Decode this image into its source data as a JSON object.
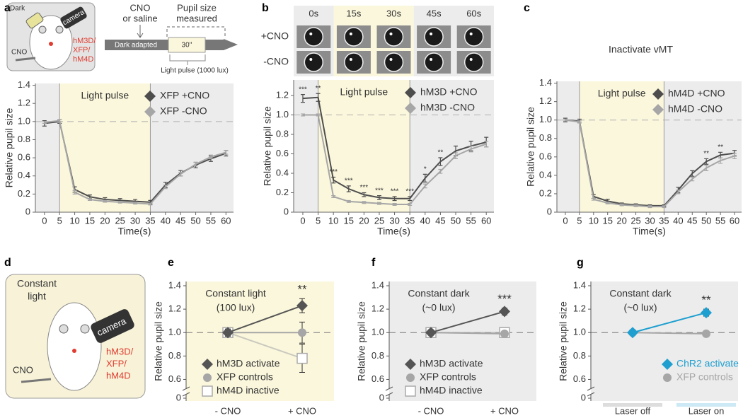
{
  "chart_data": [
    {
      "type": "line",
      "label": "a",
      "x": [
        0,
        5,
        10,
        15,
        20,
        25,
        30,
        35,
        40,
        45,
        50,
        55,
        60
      ],
      "xlim": [
        -3,
        62.5
      ],
      "xticks": [
        0,
        5,
        10,
        15,
        20,
        25,
        30,
        35,
        40,
        45,
        50,
        55,
        60
      ],
      "ylim": [
        0,
        1.42
      ],
      "yticks": [
        0,
        0.2,
        0.4,
        0.6,
        0.8,
        {
          "value": 1,
          "label": "1.0"
        },
        1.2,
        1.4
      ],
      "xlabel": "Time(s)",
      "ylabel": "Relative pupil size",
      "shaded_region": {
        "label": "Light pulse",
        "x": [
          5,
          35
        ],
        "color": "#fbf7dc"
      },
      "reference_line": 1,
      "legend": "upper right",
      "series": [
        {
          "name": "XFP +CNO",
          "color": "#4d4d4d",
          "values": [
            0.98,
            1.0,
            0.25,
            0.17,
            0.14,
            0.13,
            0.12,
            0.11,
            0.3,
            0.43,
            0.52,
            0.59,
            0.65
          ],
          "errors": [
            0.03,
            0.02,
            0.03,
            0.02,
            0.02,
            0.02,
            0.02,
            0.02,
            0.03,
            0.03,
            0.03,
            0.03,
            0.03
          ]
        },
        {
          "name": "XFP -CNO",
          "color": "#a6a6a6",
          "values": [
            0.99,
            1.01,
            0.22,
            0.14,
            0.12,
            0.11,
            0.1,
            0.09,
            0.28,
            0.42,
            0.53,
            0.61,
            0.66
          ],
          "errors": [
            0.01,
            0.01,
            0.02,
            0.01,
            0.01,
            0.01,
            0.01,
            0.01,
            0.02,
            0.02,
            0.02,
            0.02,
            0.02
          ]
        }
      ]
    },
    {
      "type": "line",
      "label": "b",
      "x": [
        0,
        5,
        10,
        15,
        20,
        25,
        30,
        35,
        40,
        45,
        50,
        55,
        60
      ],
      "xlim": [
        -3,
        62.5
      ],
      "xticks": [
        0,
        5,
        10,
        15,
        20,
        25,
        30,
        35,
        40,
        45,
        50,
        55,
        60
      ],
      "ylim": [
        0,
        1.36
      ],
      "yticks": [
        0,
        0.2,
        0.4,
        0.6,
        0.8,
        {
          "value": 1,
          "label": "1.0"
        },
        1.2
      ],
      "xlabel": "Time(s)",
      "ylabel": "Relative pupil size",
      "shaded_region": {
        "label": "Light pulse",
        "x": [
          5,
          35
        ],
        "color": "#fbf7dc"
      },
      "reference_line": 1,
      "legend": "upper right",
      "significance": [
        "***",
        "**",
        "***",
        "***",
        "***",
        "***",
        "***",
        "***",
        "*",
        "**",
        null,
        null,
        null
      ],
      "series": [
        {
          "name": "hM3D +CNO",
          "color": "#4d4d4d",
          "values": [
            1.17,
            1.18,
            0.33,
            0.24,
            0.18,
            0.15,
            0.14,
            0.14,
            0.35,
            0.52,
            0.63,
            0.68,
            0.72
          ],
          "errors": [
            0.04,
            0.04,
            0.03,
            0.03,
            0.02,
            0.02,
            0.02,
            0.02,
            0.04,
            0.04,
            0.05,
            0.05,
            0.05
          ]
        },
        {
          "name": "hM3D -CNO",
          "color": "#a6a6a6",
          "values": [
            1.0,
            1.0,
            0.16,
            0.11,
            0.1,
            0.09,
            0.08,
            0.08,
            0.27,
            0.42,
            0.58,
            0.65,
            0.7
          ],
          "errors": [
            0.01,
            0.01,
            0.01,
            0.01,
            0.01,
            0.01,
            0.01,
            0.01,
            0.02,
            0.02,
            0.03,
            0.03,
            0.03
          ]
        }
      ]
    },
    {
      "type": "line",
      "label": "c",
      "title": "Inactivate vMT",
      "x": [
        0,
        5,
        10,
        15,
        20,
        25,
        30,
        35,
        40,
        45,
        50,
        55,
        60
      ],
      "xlim": [
        -3,
        62.5
      ],
      "xticks": [
        0,
        5,
        10,
        15,
        20,
        25,
        30,
        35,
        40,
        45,
        50,
        55,
        60
      ],
      "ylim": [
        0,
        1.42
      ],
      "yticks": [
        0,
        0.2,
        0.4,
        0.6,
        0.8,
        {
          "value": 1,
          "label": "1.0"
        },
        1.2,
        1.4
      ],
      "xlabel": "Time(s)",
      "ylabel": "Relative pupil size",
      "shaded_region": {
        "label": "Light pulse",
        "x": [
          5,
          35
        ],
        "color": "#fbf7dc"
      },
      "reference_line": 1,
      "legend": "upper right",
      "significance": [
        null,
        null,
        null,
        null,
        null,
        null,
        null,
        null,
        null,
        null,
        "**",
        "**",
        null
      ],
      "series": [
        {
          "name": "hM4D +CNO",
          "color": "#4d4d4d",
          "values": [
            1.0,
            0.99,
            0.17,
            0.12,
            0.09,
            0.08,
            0.07,
            0.07,
            0.24,
            0.42,
            0.55,
            0.62,
            0.64
          ],
          "errors": [
            0.02,
            0.02,
            0.02,
            0.02,
            0.01,
            0.01,
            0.01,
            0.01,
            0.03,
            0.03,
            0.03,
            0.03,
            0.03
          ]
        },
        {
          "name": "hM4D -CNO",
          "color": "#a6a6a6",
          "values": [
            1.0,
            0.98,
            0.14,
            0.1,
            0.08,
            0.07,
            0.06,
            0.06,
            0.22,
            0.36,
            0.48,
            0.56,
            0.61
          ],
          "errors": [
            0.01,
            0.01,
            0.01,
            0.01,
            0.01,
            0.01,
            0.01,
            0.01,
            0.02,
            0.02,
            0.03,
            0.03,
            0.03
          ]
        }
      ]
    },
    {
      "type": "dot",
      "label": "e",
      "categories": [
        "- CNO",
        "+ CNO"
      ],
      "ylim": [
        0.5,
        1.4
      ],
      "yticks": [
        0.6,
        0.8,
        {
          "value": 1,
          "label": "1.0"
        },
        1.2,
        1.4
      ],
      "y_break": 0,
      "ylabel": "Relative pupil size",
      "note": [
        "Constant light",
        "(100 lux)"
      ],
      "background": "#fbf7dc",
      "reference_line": 1,
      "legend": "lower left",
      "significance": [
        null,
        "**"
      ],
      "series": [
        {
          "name": "hM3D activate",
          "color": "#555555",
          "marker": "diamond",
          "values": [
            1.0,
            1.23
          ],
          "errors": [
            0.03,
            0.06
          ]
        },
        {
          "name": "XFP controls",
          "color": "#a6a6a6",
          "marker": "circle",
          "values": [
            1.0,
            1.0
          ],
          "errors": [
            0.03,
            0.09
          ]
        },
        {
          "name": "hM4D inactive",
          "color": "#aaaaaa",
          "marker": "square-open",
          "values": [
            1.0,
            0.78
          ],
          "errors": [
            0.03,
            0.12
          ]
        }
      ]
    },
    {
      "type": "dot",
      "label": "f",
      "categories": [
        "- CNO",
        "+ CNO"
      ],
      "ylim": [
        0.5,
        1.4
      ],
      "yticks": [
        0.6,
        0.8,
        {
          "value": 1,
          "label": "1.0"
        },
        1.2,
        1.4
      ],
      "y_break": 0,
      "ylabel": "Relative pupil size",
      "note": [
        "Constant dark",
        "(~0 lux)"
      ],
      "background": "#ececec",
      "reference_line": 1,
      "legend": "lower left",
      "significance": [
        null,
        "***"
      ],
      "series": [
        {
          "name": "hM3D activate",
          "color": "#555555",
          "marker": "diamond",
          "values": [
            1.0,
            1.18
          ],
          "errors": [
            0.02,
            0.03
          ]
        },
        {
          "name": "XFP controls",
          "color": "#a6a6a6",
          "marker": "circle",
          "values": [
            1.0,
            0.99
          ],
          "errors": [
            0.02,
            0.02
          ]
        },
        {
          "name": "hM4D inactive",
          "color": "#aaaaaa",
          "marker": "square-open",
          "values": [
            1.0,
            1.0
          ],
          "errors": [
            0.02,
            0.03
          ]
        }
      ]
    },
    {
      "type": "dot",
      "label": "g",
      "categories": [
        "Laser off",
        "Laser on"
      ],
      "category_colors": [
        "#dddddd",
        "#cde9f5"
      ],
      "ylim": [
        0.5,
        1.4
      ],
      "yticks": [
        0.6,
        0.8,
        {
          "value": 1,
          "label": "1.0"
        },
        1.2,
        1.4
      ],
      "y_break": 0,
      "ylabel": "Relative pupil size",
      "note": [
        "Constant dark",
        "(~0 lux)"
      ],
      "background": "#ececec",
      "reference_line": 1,
      "legend": "lower right",
      "legend_text_colored": true,
      "significance": [
        null,
        "**"
      ],
      "series": [
        {
          "name": "ChR2 activate",
          "color": "#1e9fd0",
          "marker": "diamond",
          "values": [
            1.0,
            1.17
          ],
          "errors": [
            0.01,
            0.03
          ]
        },
        {
          "name": "XFP controls",
          "color": "#a6a6a6",
          "marker": "circle",
          "values": [
            1.0,
            0.99
          ],
          "errors": [
            0.02,
            0.02
          ]
        }
      ]
    }
  ],
  "schematic_a": {
    "dark": "Dark",
    "camera": "camera",
    "construct": [
      "hM3D/",
      "XFP/",
      "hM4D"
    ],
    "cno": "CNO",
    "injection": [
      "CNO",
      "or saline"
    ],
    "measured": [
      "Pupil size",
      "measured"
    ],
    "dark_adapted": "Dark adapted",
    "pulse_duration": "30''",
    "light_pulse": "Light pulse (1000 lux)"
  },
  "images_b": {
    "times": [
      "0s",
      "15s",
      "30s",
      "45s",
      "60s"
    ],
    "rows": [
      "+CNO",
      "-CNO"
    ]
  },
  "schematic_d": {
    "label": "d",
    "condition": [
      "Constant",
      "light"
    ],
    "camera": "camera",
    "construct": [
      "hM3D/",
      "XFP/",
      "hM4D"
    ],
    "cno": "CNO"
  }
}
